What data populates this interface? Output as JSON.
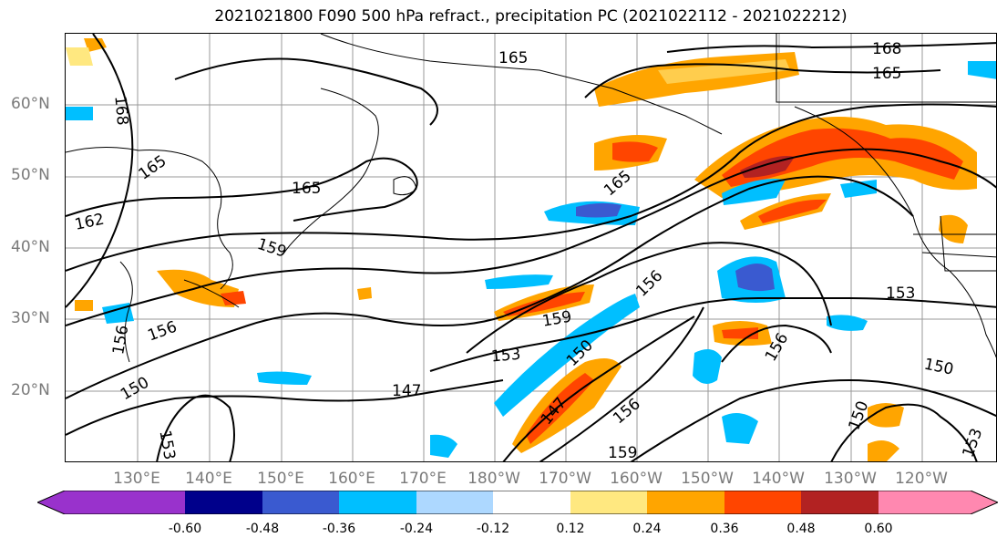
{
  "title": "2021021800 F090 500 hPa refract., precipitation PC (2021022112 - 2021022212)",
  "lat_labels": [
    "60°N",
    "50°N",
    "40°N",
    "30°N",
    "20°N"
  ],
  "lon_labels": [
    "130°E",
    "140°E",
    "150°E",
    "160°E",
    "170°E",
    "180°W",
    "170°W",
    "160°W",
    "150°W",
    "140°W",
    "130°W",
    "120°W"
  ],
  "contour_labels": [
    "168",
    "165",
    "165",
    "162",
    "159",
    "156",
    "156",
    "153",
    "150",
    "147",
    "165",
    "165",
    "168",
    "165",
    "156",
    "159",
    "153",
    "150",
    "156",
    "153",
    "150",
    "150",
    "153",
    "159",
    "147",
    "156"
  ],
  "colorbar": {
    "tick_labels": [
      "-0.60",
      "-0.48",
      "-0.36",
      "-0.24",
      "-0.12",
      "0.12",
      "0.24",
      "0.36",
      "0.48",
      "0.60"
    ],
    "colors": [
      "#9932cc",
      "#00008b",
      "#3a5ad0",
      "#00bfff",
      "#add8ff",
      "#ffffff",
      "#ffe880",
      "#ffa500",
      "#ff4500",
      "#b22222",
      "#ff88b0"
    ]
  }
}
